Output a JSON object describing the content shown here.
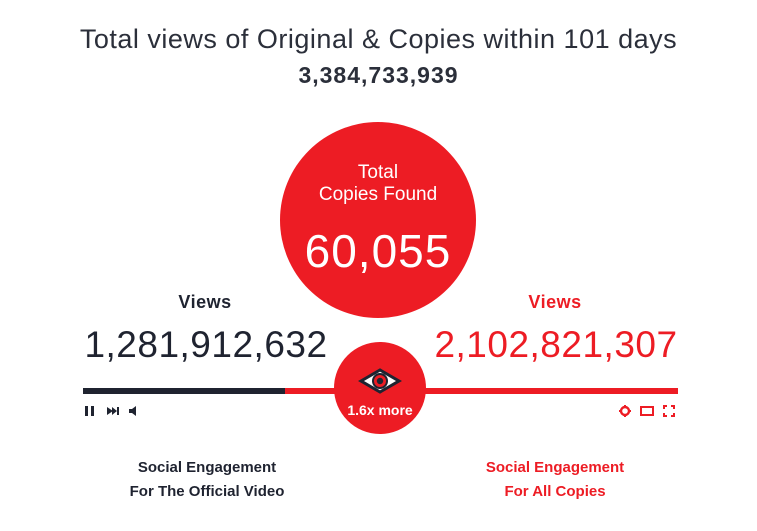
{
  "header": {
    "title": "Total views of Original & Copies within 101 days",
    "total": "3,384,733,939"
  },
  "copies": {
    "line1": "Total",
    "line2": "Copies Found",
    "count": "60,055"
  },
  "official": {
    "views_label": "Views",
    "views": "1,281,912,632",
    "engagement_line1": "Social Engagement",
    "engagement_line2": "For The Official Video"
  },
  "all_copies": {
    "views_label": "Views",
    "views": "2,102,821,307",
    "engagement_line1": "Social Engagement",
    "engagement_line2": "For All Copies"
  },
  "ratio": "1.6x more",
  "player": {
    "progress": 0.34,
    "icons": [
      "pause-icon",
      "skip-next-icon",
      "volume-icon",
      "settings-icon",
      "theater-icon",
      "fullscreen-icon"
    ]
  },
  "colors": {
    "accent": "#ed1c24",
    "dark": "#1f2330"
  }
}
